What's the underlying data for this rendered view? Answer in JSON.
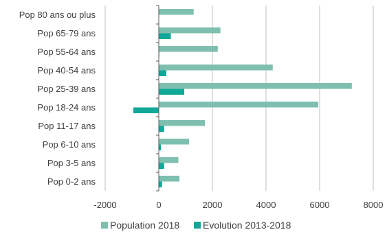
{
  "chart_data": {
    "type": "bar",
    "orientation": "horizontal",
    "categories": [
      "Pop 80 ans ou plus",
      "Pop 65-79 ans",
      "Pop 55-64 ans",
      "Pop 40-54 ans",
      "Pop 25-39 ans",
      "Pop 18-24 ans",
      "Pop 11-17 ans",
      "Pop 6-10 ans",
      "Pop 3-5 ans",
      "Pop 0-2 ans"
    ],
    "series": [
      {
        "name": "Population 2018",
        "color": "#7fbfaf",
        "values": [
          1300,
          2300,
          2200,
          4250,
          7200,
          5950,
          1720,
          1130,
          730,
          770
        ]
      },
      {
        "name": "Evolution 2013-2018",
        "color": "#10a898",
        "values": [
          0,
          450,
          20,
          280,
          950,
          -950,
          200,
          80,
          200,
          120
        ]
      }
    ],
    "x_ticks": [
      "-2000",
      "0",
      "2000",
      "4000",
      "6000",
      "8000"
    ],
    "xlim": [
      -2000,
      8000
    ],
    "grid": true,
    "legend": "bottom"
  }
}
